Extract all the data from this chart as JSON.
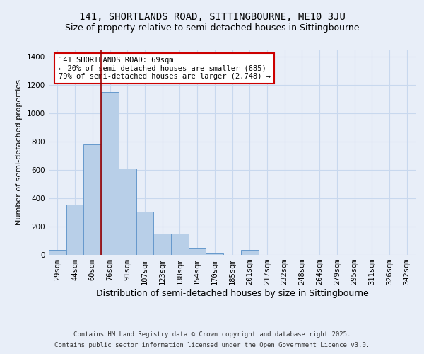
{
  "title1": "141, SHORTLANDS ROAD, SITTINGBOURNE, ME10 3JU",
  "title2": "Size of property relative to semi-detached houses in Sittingbourne",
  "xlabel": "Distribution of semi-detached houses by size in Sittingbourne",
  "ylabel": "Number of semi-detached properties",
  "categories": [
    "29sqm",
    "44sqm",
    "60sqm",
    "76sqm",
    "91sqm",
    "107sqm",
    "123sqm",
    "138sqm",
    "154sqm",
    "170sqm",
    "185sqm",
    "201sqm",
    "217sqm",
    "232sqm",
    "248sqm",
    "264sqm",
    "279sqm",
    "295sqm",
    "311sqm",
    "326sqm",
    "342sqm"
  ],
  "values": [
    35,
    355,
    780,
    1150,
    610,
    305,
    150,
    150,
    50,
    12,
    0,
    35,
    0,
    0,
    0,
    0,
    0,
    0,
    0,
    0,
    0
  ],
  "bar_color": "#b8cfe8",
  "bar_edge_color": "#6699cc",
  "grid_color": "#c8d8ee",
  "bg_color": "#e8eef8",
  "vline_color": "#990000",
  "vline_x_idx": 2.5,
  "annotation_text": "141 SHORTLANDS ROAD: 69sqm\n← 20% of semi-detached houses are smaller (685)\n79% of semi-detached houses are larger (2,748) →",
  "annotation_box_color": "#ffffff",
  "annotation_box_edge": "#cc0000",
  "footnote_line1": "Contains HM Land Registry data © Crown copyright and database right 2025.",
  "footnote_line2": "Contains public sector information licensed under the Open Government Licence v3.0.",
  "ylim": [
    0,
    1450
  ],
  "title1_fontsize": 10,
  "title2_fontsize": 9,
  "xlabel_fontsize": 9,
  "ylabel_fontsize": 8,
  "tick_fontsize": 7.5,
  "annotation_fontsize": 7.5,
  "footnote_fontsize": 6.5
}
